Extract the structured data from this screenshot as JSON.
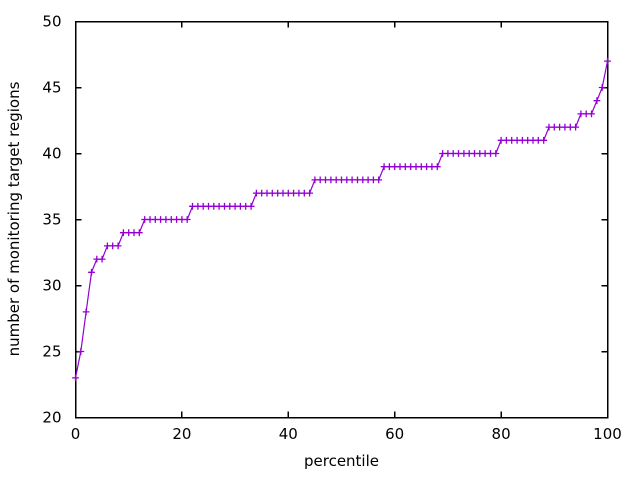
{
  "figure": {
    "background_color": "#ffffff",
    "text_color": "#000000",
    "border_color": "#000000"
  },
  "chart_data": {
    "type": "line",
    "title": "",
    "xlabel": "percentile",
    "ylabel": "number of monitoring target regions",
    "xlim": [
      0,
      100
    ],
    "ylim": [
      20,
      50
    ],
    "xticks": [
      0,
      20,
      40,
      60,
      80,
      100
    ],
    "yticks": [
      20,
      25,
      30,
      35,
      40,
      45,
      50
    ],
    "grid": false,
    "legend_position": "none",
    "series": [
      {
        "name": "monitoring-target-regions-percentile",
        "color": "#9400d3",
        "marker": "plus",
        "x_start": 0,
        "x_step": 1,
        "n_points": 101,
        "values": [
          23,
          25,
          28,
          31,
          32,
          32,
          33,
          33,
          33,
          34,
          34,
          34,
          34,
          35,
          35,
          35,
          35,
          35,
          35,
          35,
          35,
          35,
          36,
          36,
          36,
          36,
          36,
          36,
          36,
          36,
          36,
          36,
          36,
          36,
          37,
          37,
          37,
          37,
          37,
          37,
          37,
          37,
          37,
          37,
          37,
          38,
          38,
          38,
          38,
          38,
          38,
          38,
          38,
          38,
          38,
          38,
          38,
          38,
          39,
          39,
          39,
          39,
          39,
          39,
          39,
          39,
          39,
          39,
          39,
          40,
          40,
          40,
          40,
          40,
          40,
          40,
          40,
          40,
          40,
          40,
          41,
          41,
          41,
          41,
          41,
          41,
          41,
          41,
          41,
          42,
          42,
          42,
          42,
          42,
          42,
          43,
          43,
          43,
          44,
          45,
          47
        ]
      }
    ]
  }
}
